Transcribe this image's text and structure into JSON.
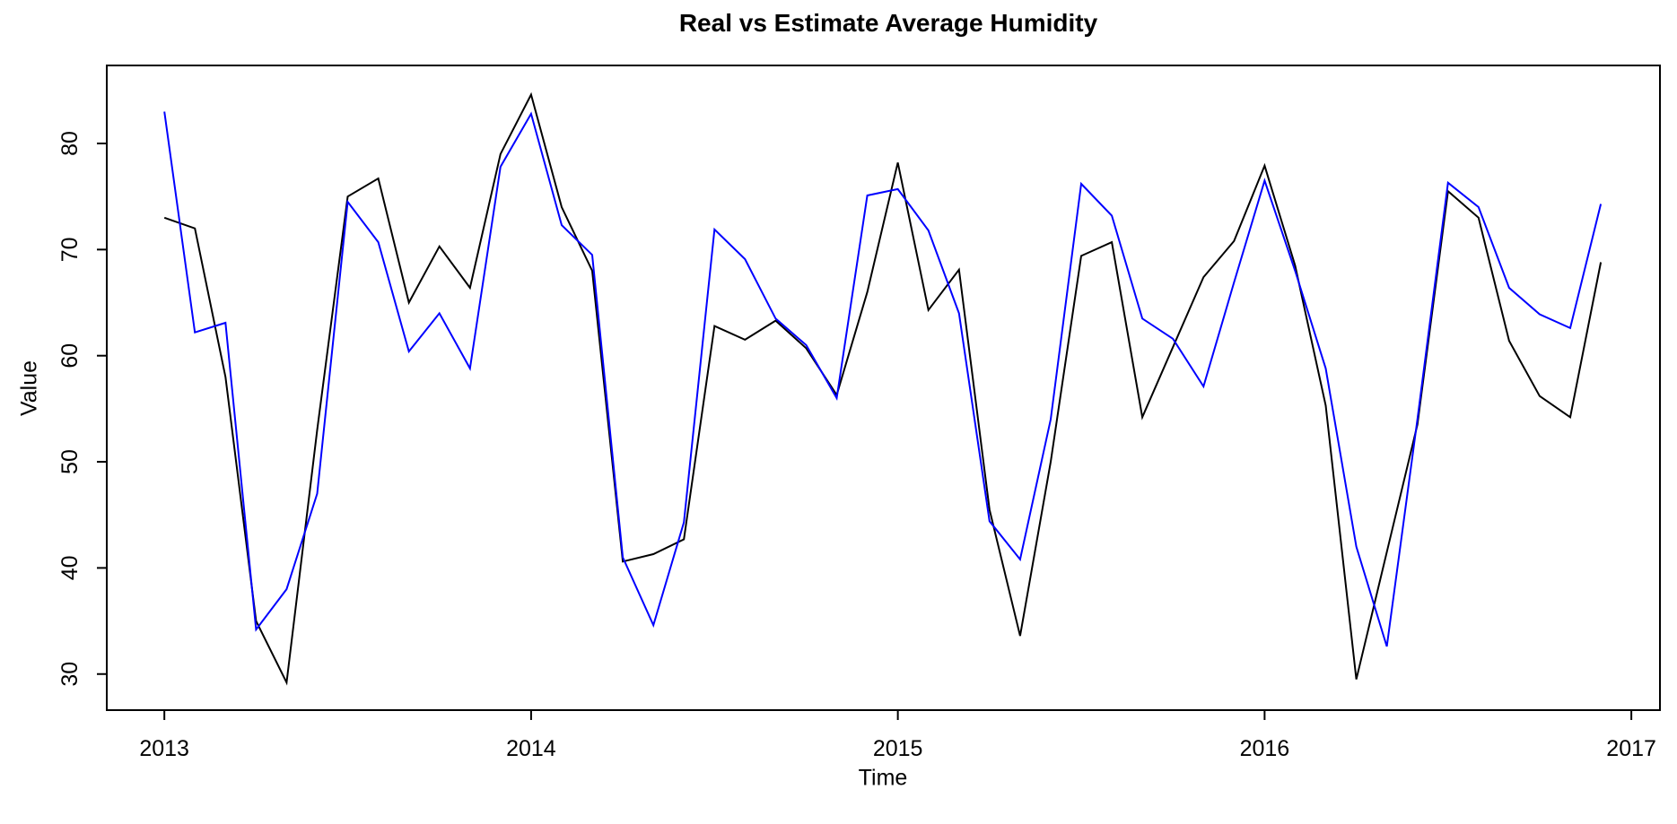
{
  "chart_data": {
    "type": "line",
    "title": "Real vs Estimate Average Humidity",
    "xlabel": "Time",
    "ylabel": "Value",
    "x_ticks": [
      2013,
      2014,
      2015,
      2016,
      2017
    ],
    "y_ticks": [
      30,
      40,
      50,
      60,
      70,
      80
    ],
    "xlim": [
      2012.843,
      2017.078
    ],
    "ylim": [
      26.6,
      87.35
    ],
    "grid": false,
    "legend": "none",
    "x_start_year": 2013,
    "x_step": "monthly",
    "months": [
      "2013-01",
      "2013-02",
      "2013-03",
      "2013-04",
      "2013-05",
      "2013-06",
      "2013-07",
      "2013-08",
      "2013-09",
      "2013-10",
      "2013-11",
      "2013-12",
      "2014-01",
      "2014-02",
      "2014-03",
      "2014-04",
      "2014-05",
      "2014-06",
      "2014-07",
      "2014-08",
      "2014-09",
      "2014-10",
      "2014-11",
      "2014-12",
      "2015-01",
      "2015-02",
      "2015-03",
      "2015-04",
      "2015-05",
      "2015-06",
      "2015-07",
      "2015-08",
      "2015-09",
      "2015-10",
      "2015-11",
      "2015-12",
      "2016-01",
      "2016-02",
      "2016-03",
      "2016-04",
      "2016-05",
      "2016-06",
      "2016-07",
      "2016-08",
      "2016-09",
      "2016-10",
      "2016-11",
      "2016-12"
    ],
    "series": [
      {
        "name": "Real",
        "color": "#000000",
        "values": [
          73,
          72,
          58,
          35,
          29.2,
          53,
          75,
          76.7,
          65,
          70.3,
          66.4,
          79,
          84.6,
          74,
          68,
          40.6,
          41.3,
          42.7,
          62.8,
          61.5,
          63.3,
          60.7,
          56.3,
          66,
          78.2,
          64.3,
          68.1,
          45.5,
          33.6,
          50,
          69.4,
          70.7,
          54.2,
          60.8,
          67.4,
          70.8,
          77.9,
          68.5,
          55.3,
          29.5,
          41.5,
          53.5,
          75.5,
          73,
          61.4,
          56.2,
          54.2,
          68.8
        ]
      },
      {
        "name": "Estimate",
        "color": "#0000ff",
        "values": [
          83,
          62.2,
          63.1,
          34.2,
          38,
          47,
          74.5,
          70.7,
          60.4,
          64,
          58.8,
          77.8,
          82.8,
          72.3,
          69.5,
          41,
          34.6,
          44.3,
          71.9,
          69.1,
          63.5,
          61,
          56,
          75.1,
          75.7,
          71.8,
          64,
          44.4,
          40.8,
          54,
          76.2,
          73.2,
          63.5,
          61.6,
          57.1,
          66.9,
          76.5,
          68,
          58.8,
          42,
          32.6,
          54,
          76.3,
          74,
          66.4,
          63.9,
          62.6,
          74.3
        ]
      }
    ]
  },
  "labels": {
    "title": "Real vs Estimate Average Humidity",
    "xlabel": "Time",
    "ylabel": "Value"
  },
  "colors": {
    "real_line": "#000000",
    "estimate_line": "#0000ff",
    "axis": "#000000",
    "background": "#ffffff"
  }
}
